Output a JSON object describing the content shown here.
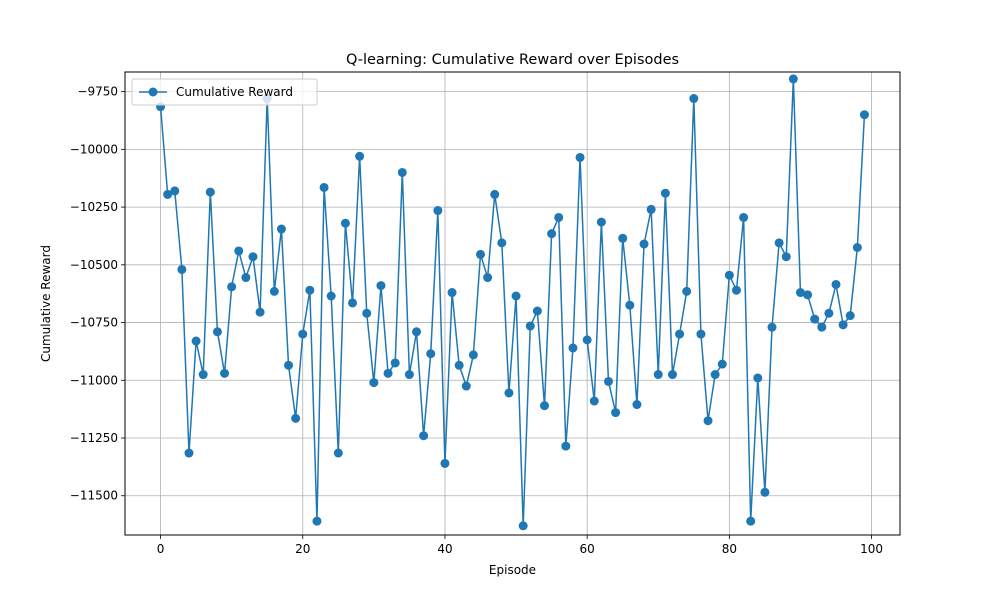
{
  "chart_data": {
    "type": "line",
    "title": "Q-learning: Cumulative Reward over Episodes",
    "xlabel": "Episode",
    "ylabel": "Cumulative Reward",
    "xlim": [
      -5,
      104
    ],
    "ylim": [
      -11670,
      -9665
    ],
    "xticks": [
      0,
      20,
      40,
      60,
      80,
      100
    ],
    "yticks": [
      -9750,
      -10000,
      -10250,
      -10500,
      -10750,
      -11000,
      -11250,
      -11500
    ],
    "grid": true,
    "legend_position": "top-left",
    "series": [
      {
        "name": "Cumulative Reward",
        "color": "#1f77b4",
        "marker": "circle",
        "x": [
          0,
          1,
          2,
          3,
          4,
          5,
          6,
          7,
          8,
          9,
          10,
          11,
          12,
          13,
          14,
          15,
          16,
          17,
          18,
          19,
          20,
          21,
          22,
          23,
          24,
          25,
          26,
          27,
          28,
          29,
          30,
          31,
          32,
          33,
          34,
          35,
          36,
          37,
          38,
          39,
          40,
          41,
          42,
          43,
          44,
          45,
          46,
          47,
          48,
          49,
          50,
          51,
          52,
          53,
          54,
          55,
          56,
          57,
          58,
          59,
          60,
          61,
          62,
          63,
          64,
          65,
          66,
          67,
          68,
          69,
          70,
          71,
          72,
          73,
          74,
          75,
          76,
          77,
          78,
          79,
          80,
          81,
          82,
          83,
          84,
          85,
          86,
          87,
          88,
          89,
          90,
          91,
          92,
          93,
          94,
          95,
          96,
          97,
          98,
          99
        ],
        "values": [
          -9815,
          -10195,
          -10180,
          -10520,
          -11315,
          -10830,
          -10975,
          -10185,
          -10790,
          -10970,
          -10595,
          -10440,
          -10555,
          -10465,
          -10705,
          -9780,
          -10615,
          -10345,
          -10935,
          -11165,
          -10800,
          -10610,
          -11610,
          -10165,
          -10635,
          -11315,
          -10320,
          -10665,
          -10030,
          -10710,
          -11010,
          -10590,
          -10970,
          -10925,
          -10100,
          -10975,
          -10790,
          -11240,
          -10885,
          -10265,
          -11360,
          -10620,
          -10935,
          -11025,
          -10890,
          -10455,
          -10555,
          -10195,
          -10405,
          -11055,
          -10635,
          -11630,
          -10765,
          -10700,
          -11110,
          -10365,
          -10295,
          -11285,
          -10860,
          -10035,
          -10825,
          -11090,
          -10315,
          -11005,
          -11140,
          -10385,
          -10675,
          -11105,
          -10410,
          -10260,
          -10975,
          -10190,
          -10975,
          -10800,
          -10615,
          -9780,
          -10800,
          -11175,
          -10975,
          -10930,
          -10545,
          -10610,
          -10295,
          -11610,
          -10990,
          -11485,
          -10770,
          -10405,
          -10465,
          -9695,
          -10620,
          -10630,
          -10735,
          -10770,
          -10710,
          -10585,
          -10760,
          -10720,
          -10425,
          -9850
        ]
      }
    ]
  }
}
